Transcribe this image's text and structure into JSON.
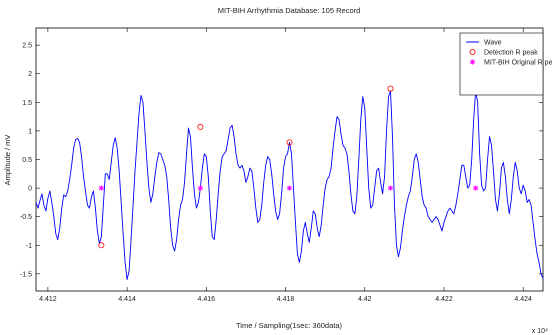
{
  "chart_data": {
    "type": "line",
    "title": "MIT-BIH Arrhythmia Database: 105 Record",
    "xlabel": "Time / Sampling(1sec: 360data)",
    "ylabel": "Amplitude / mV",
    "x_exponent": "x 10⁴",
    "xlim": [
      4.4117,
      4.4245
    ],
    "ylim": [
      -1.8,
      2.8
    ],
    "x_ticks": [
      4.412,
      4.414,
      4.416,
      4.418,
      4.42,
      4.422,
      4.424
    ],
    "x_tick_labels": [
      "4.412",
      "4.414",
      "4.416",
      "4.418",
      "4.42",
      "4.422",
      "4.424"
    ],
    "y_ticks": [
      -1.5,
      -1,
      -0.5,
      0,
      0.5,
      1,
      1.5,
      2,
      2.5
    ],
    "y_tick_labels": [
      "-1.5",
      "-1",
      "-0.5",
      "0",
      "0.5",
      "1",
      "1.5",
      "2",
      "2.5"
    ],
    "grid": false,
    "legend_position": "top-right",
    "series": [
      {
        "name": "Wave",
        "style": "line",
        "color": "#0000ff",
        "points": [
          [
            4.4117,
            -0.25
          ],
          [
            4.41175,
            -0.35
          ],
          [
            4.4118,
            -0.22
          ],
          [
            4.41185,
            -0.1
          ],
          [
            4.4119,
            -0.3
          ],
          [
            4.41195,
            -0.4
          ],
          [
            4.412,
            -0.18
          ],
          [
            4.41205,
            -0.05
          ],
          [
            4.4121,
            -0.25
          ],
          [
            4.41215,
            -0.5
          ],
          [
            4.4122,
            -0.8
          ],
          [
            4.41225,
            -0.9
          ],
          [
            4.4123,
            -0.7
          ],
          [
            4.41235,
            -0.35
          ],
          [
            4.4124,
            -0.12
          ],
          [
            4.41245,
            -0.15
          ],
          [
            4.4125,
            -0.05
          ],
          [
            4.41255,
            0.15
          ],
          [
            4.4126,
            0.4
          ],
          [
            4.41265,
            0.7
          ],
          [
            4.4127,
            0.85
          ],
          [
            4.41275,
            0.87
          ],
          [
            4.4128,
            0.8
          ],
          [
            4.41285,
            0.55
          ],
          [
            4.4129,
            0.2
          ],
          [
            4.41295,
            -0.05
          ],
          [
            4.413,
            -0.3
          ],
          [
            4.41305,
            -0.35
          ],
          [
            4.4131,
            -0.15
          ],
          [
            4.41315,
            -0.05
          ],
          [
            4.4132,
            -0.35
          ],
          [
            4.41325,
            -0.75
          ],
          [
            4.4133,
            -0.97
          ],
          [
            4.41335,
            -0.85
          ],
          [
            4.4134,
            -0.3
          ],
          [
            4.41345,
            0.25
          ],
          [
            4.4135,
            0.25
          ],
          [
            4.41355,
            0.15
          ],
          [
            4.4136,
            0.45
          ],
          [
            4.41365,
            0.75
          ],
          [
            4.4137,
            0.88
          ],
          [
            4.41375,
            0.7
          ],
          [
            4.4138,
            0.3
          ],
          [
            4.41385,
            -0.25
          ],
          [
            4.4139,
            -0.8
          ],
          [
            4.41395,
            -1.3
          ],
          [
            4.414,
            -1.6
          ],
          [
            4.41405,
            -1.45
          ],
          [
            4.4141,
            -0.9
          ],
          [
            4.41415,
            -0.3
          ],
          [
            4.4142,
            0.3
          ],
          [
            4.41425,
            0.8
          ],
          [
            4.4143,
            1.3
          ],
          [
            4.41435,
            1.62
          ],
          [
            4.4144,
            1.5
          ],
          [
            4.41445,
            1.0
          ],
          [
            4.4145,
            0.45
          ],
          [
            4.41455,
            0.0
          ],
          [
            4.4146,
            -0.25
          ],
          [
            4.41465,
            -0.1
          ],
          [
            4.4147,
            0.2
          ],
          [
            4.41475,
            0.45
          ],
          [
            4.4148,
            0.62
          ],
          [
            4.41485,
            0.6
          ],
          [
            4.4149,
            0.5
          ],
          [
            4.41495,
            0.4
          ],
          [
            4.415,
            0.2
          ],
          [
            4.41505,
            -0.2
          ],
          [
            4.4151,
            -0.7
          ],
          [
            4.41515,
            -1.0
          ],
          [
            4.4152,
            -1.1
          ],
          [
            4.41525,
            -0.9
          ],
          [
            4.4153,
            -0.55
          ],
          [
            4.41535,
            -0.3
          ],
          [
            4.4154,
            -0.2
          ],
          [
            4.41545,
            0.1
          ],
          [
            4.4155,
            0.6
          ],
          [
            4.41555,
            1.05
          ],
          [
            4.4156,
            0.9
          ],
          [
            4.41565,
            0.35
          ],
          [
            4.4157,
            -0.1
          ],
          [
            4.41575,
            -0.35
          ],
          [
            4.4158,
            -0.25
          ],
          [
            4.41585,
            0.0
          ],
          [
            4.4159,
            0.35
          ],
          [
            4.41595,
            0.6
          ],
          [
            4.416,
            0.55
          ],
          [
            4.41605,
            0.2
          ],
          [
            4.4161,
            -0.4
          ],
          [
            4.41615,
            -0.85
          ],
          [
            4.4162,
            -0.9
          ],
          [
            4.41625,
            -0.55
          ],
          [
            4.4163,
            -0.1
          ],
          [
            4.41635,
            0.3
          ],
          [
            4.4164,
            0.55
          ],
          [
            4.41645,
            0.6
          ],
          [
            4.4165,
            0.65
          ],
          [
            4.41655,
            0.85
          ],
          [
            4.4166,
            1.05
          ],
          [
            4.41665,
            1.1
          ],
          [
            4.4167,
            0.9
          ],
          [
            4.41675,
            0.6
          ],
          [
            4.4168,
            0.4
          ],
          [
            4.41685,
            0.35
          ],
          [
            4.4169,
            0.4
          ],
          [
            4.41695,
            0.3
          ],
          [
            4.417,
            0.1
          ],
          [
            4.41705,
            0.2
          ],
          [
            4.4171,
            0.35
          ],
          [
            4.41715,
            0.3
          ],
          [
            4.4172,
            0.0
          ],
          [
            4.41725,
            -0.35
          ],
          [
            4.4173,
            -0.6
          ],
          [
            4.41735,
            -0.55
          ],
          [
            4.4174,
            -0.3
          ],
          [
            4.41745,
            0.1
          ],
          [
            4.4175,
            0.4
          ],
          [
            4.41755,
            0.55
          ],
          [
            4.4176,
            0.5
          ],
          [
            4.41765,
            0.25
          ],
          [
            4.4177,
            -0.1
          ],
          [
            4.41775,
            -0.4
          ],
          [
            4.4178,
            -0.55
          ],
          [
            4.41785,
            -0.45
          ],
          [
            4.4179,
            -0.1
          ],
          [
            4.41795,
            0.35
          ],
          [
            4.418,
            0.55
          ],
          [
            4.41805,
            0.6
          ],
          [
            4.4181,
            0.8
          ],
          [
            4.41815,
            0.6
          ],
          [
            4.4182,
            0.0
          ],
          [
            4.41825,
            -0.6
          ],
          [
            4.4183,
            -1.15
          ],
          [
            4.41835,
            -1.3
          ],
          [
            4.4184,
            -1.1
          ],
          [
            4.41845,
            -0.75
          ],
          [
            4.4185,
            -0.6
          ],
          [
            4.41855,
            -0.8
          ],
          [
            4.4186,
            -0.95
          ],
          [
            4.41865,
            -0.7
          ],
          [
            4.4187,
            -0.4
          ],
          [
            4.41875,
            -0.45
          ],
          [
            4.4188,
            -0.7
          ],
          [
            4.41885,
            -0.85
          ],
          [
            4.4189,
            -0.65
          ],
          [
            4.41895,
            -0.3
          ],
          [
            4.419,
            0.0
          ],
          [
            4.41905,
            0.15
          ],
          [
            4.4191,
            0.2
          ],
          [
            4.41915,
            0.35
          ],
          [
            4.4192,
            0.7
          ],
          [
            4.41925,
            1.0
          ],
          [
            4.4193,
            1.25
          ],
          [
            4.41935,
            1.2
          ],
          [
            4.4194,
            0.95
          ],
          [
            4.41945,
            0.75
          ],
          [
            4.4195,
            0.7
          ],
          [
            4.41955,
            0.6
          ],
          [
            4.4196,
            0.3
          ],
          [
            4.41965,
            -0.1
          ],
          [
            4.4197,
            -0.4
          ],
          [
            4.41975,
            -0.45
          ],
          [
            4.4198,
            -0.15
          ],
          [
            4.41985,
            0.5
          ],
          [
            4.4199,
            1.2
          ],
          [
            4.41995,
            1.6
          ],
          [
            4.42,
            1.4
          ],
          [
            4.42005,
            0.7
          ],
          [
            4.4201,
            0.0
          ],
          [
            4.42015,
            -0.35
          ],
          [
            4.4202,
            -0.3
          ],
          [
            4.42025,
            0.0
          ],
          [
            4.4203,
            0.3
          ],
          [
            4.42035,
            0.35
          ],
          [
            4.4204,
            0.1
          ],
          [
            4.42045,
            -0.1
          ],
          [
            4.4205,
            0.2
          ],
          [
            4.42055,
            1.0
          ],
          [
            4.4206,
            1.6
          ],
          [
            4.42065,
            1.7
          ],
          [
            4.4207,
            0.9
          ],
          [
            4.42075,
            -0.3
          ],
          [
            4.4208,
            -1.0
          ],
          [
            4.42085,
            -1.2
          ],
          [
            4.4209,
            -1.05
          ],
          [
            4.42095,
            -0.75
          ],
          [
            4.421,
            -0.5
          ],
          [
            4.42105,
            -0.3
          ],
          [
            4.4211,
            -0.15
          ],
          [
            4.42115,
            -0.05
          ],
          [
            4.4212,
            0.2
          ],
          [
            4.42125,
            0.5
          ],
          [
            4.4213,
            0.6
          ],
          [
            4.42135,
            0.45
          ],
          [
            4.4214,
            0.15
          ],
          [
            4.42145,
            -0.15
          ],
          [
            4.4215,
            -0.3
          ],
          [
            4.42155,
            -0.35
          ],
          [
            4.4216,
            -0.5
          ],
          [
            4.42165,
            -0.55
          ],
          [
            4.4217,
            -0.6
          ],
          [
            4.42175,
            -0.55
          ],
          [
            4.4218,
            -0.5
          ],
          [
            4.42185,
            -0.55
          ],
          [
            4.4219,
            -0.65
          ],
          [
            4.42195,
            -0.75
          ],
          [
            4.422,
            -0.6
          ],
          [
            4.42205,
            -0.5
          ],
          [
            4.4221,
            -0.4
          ],
          [
            4.42215,
            -0.35
          ],
          [
            4.4222,
            -0.4
          ],
          [
            4.42225,
            -0.45
          ],
          [
            4.4223,
            -0.3
          ],
          [
            4.42235,
            -0.1
          ],
          [
            4.4224,
            0.15
          ],
          [
            4.42245,
            0.4
          ],
          [
            4.4225,
            0.4
          ],
          [
            4.42255,
            0.2
          ],
          [
            4.4226,
            0.0
          ],
          [
            4.42265,
            0.05
          ],
          [
            4.4227,
            0.5
          ],
          [
            4.42275,
            1.2
          ],
          [
            4.4228,
            1.7
          ],
          [
            4.42285,
            1.5
          ],
          [
            4.4229,
            0.6
          ],
          [
            4.42295,
            0.05
          ],
          [
            4.423,
            -0.05
          ],
          [
            4.42305,
            0.0
          ],
          [
            4.4231,
            0.5
          ],
          [
            4.42315,
            0.9
          ],
          [
            4.4232,
            0.75
          ],
          [
            4.42325,
            0.3
          ],
          [
            4.4233,
            -0.2
          ],
          [
            4.42335,
            -0.4
          ],
          [
            4.4234,
            -0.1
          ],
          [
            4.42345,
            0.35
          ],
          [
            4.4235,
            0.45
          ],
          [
            4.42355,
            0.2
          ],
          [
            4.4236,
            -0.2
          ],
          [
            4.42365,
            -0.45
          ],
          [
            4.4237,
            -0.2
          ],
          [
            4.42375,
            0.2
          ],
          [
            4.4238,
            0.45
          ],
          [
            4.42385,
            0.3
          ],
          [
            4.4239,
            0.0
          ],
          [
            4.42395,
            -0.1
          ],
          [
            4.424,
            0.05
          ],
          [
            4.42405,
            -0.05
          ],
          [
            4.4241,
            -0.25
          ],
          [
            4.42415,
            -0.2
          ],
          [
            4.4242,
            -0.3
          ],
          [
            4.42425,
            -0.6
          ],
          [
            4.4243,
            -0.9
          ],
          [
            4.42435,
            -1.15
          ],
          [
            4.4244,
            -1.3
          ],
          [
            4.42445,
            -1.5
          ],
          [
            4.4245,
            -1.58
          ]
        ]
      },
      {
        "name": "Detection R peak",
        "style": "marker-circle",
        "color": "#ff0000",
        "points": [
          [
            4.41335,
            -1.0
          ],
          [
            4.41585,
            1.07
          ],
          [
            4.4181,
            0.8
          ],
          [
            4.42065,
            1.74
          ],
          [
            4.4228,
            1.74
          ]
        ]
      },
      {
        "name": "MIT-BIH Original R peak",
        "style": "marker-star",
        "color": "#ff00ff",
        "points": [
          [
            4.41335,
            0.0
          ],
          [
            4.41585,
            0.0
          ],
          [
            4.4181,
            0.0
          ],
          [
            4.42065,
            0.0
          ],
          [
            4.4228,
            0.0
          ]
        ]
      }
    ]
  }
}
